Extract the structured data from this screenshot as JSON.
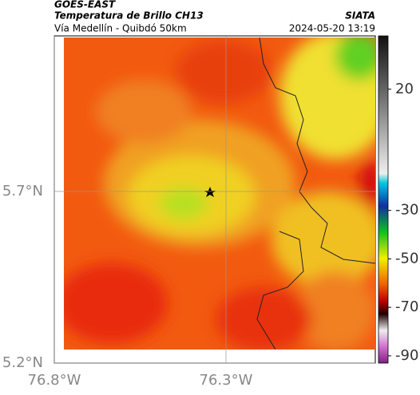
{
  "header": {
    "title": "GOES-EAST",
    "subtitle": "Temperatura de Brillo CH13",
    "source": "SIATA",
    "route": "Vía Medellín - Quibdó 50km",
    "datetime": "2024-05-20 13:19"
  },
  "map": {
    "xlim": [
      -76.8,
      -75.865
    ],
    "ylim": [
      5.2,
      6.153
    ],
    "xticks": [
      {
        "value": -76.8,
        "label": "76.8°W"
      },
      {
        "value": -76.3,
        "label": "76.3°W"
      }
    ],
    "yticks": [
      {
        "value": 5.2,
        "label": "5.2°N"
      },
      {
        "value": 5.7,
        "label": "5.7°N"
      }
    ],
    "grid": true
  },
  "colorbar": {
    "clim": [
      -93,
      42
    ],
    "ticks": [
      20,
      -30,
      -50,
      -70,
      -90
    ]
  }
}
